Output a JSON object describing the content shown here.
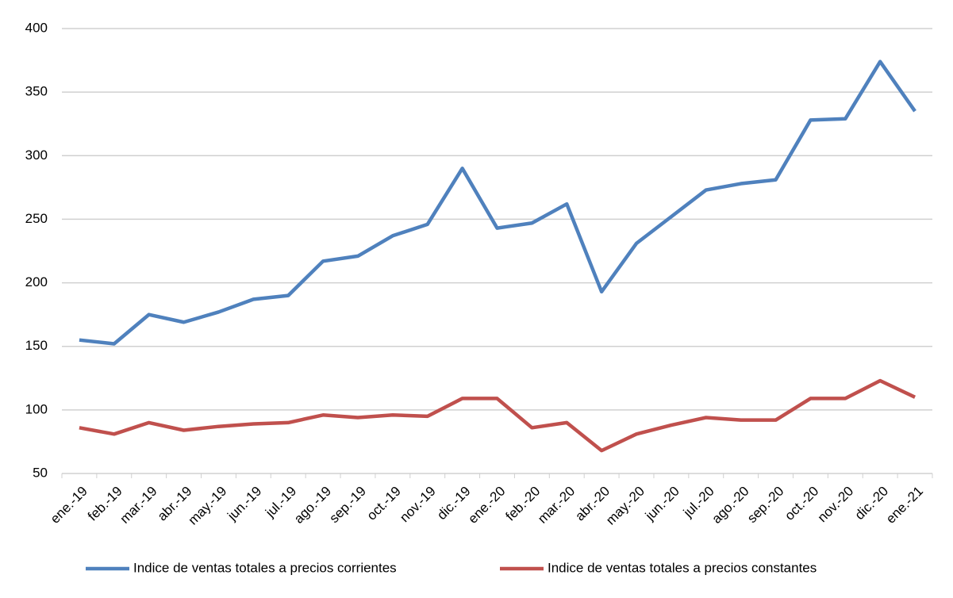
{
  "chart_data": {
    "type": "line",
    "categories": [
      "ene.-19",
      "feb.-19",
      "mar.-19",
      "abr.-19",
      "may.-19",
      "jun.-19",
      "jul.-19",
      "ago.-19",
      "sep.-19",
      "oct.-19",
      "nov.-19",
      "dic.-19",
      "ene.-20",
      "feb.-20",
      "mar.-20",
      "abr.-20",
      "may.-20",
      "jun.-20",
      "jul.-20",
      "ago.-20",
      "sep.-20",
      "oct.-20",
      "nov.-20",
      "dic.-20",
      "ene.-21"
    ],
    "series": [
      {
        "name": "Indice de ventas totales a precios corrientes",
        "color": "#4f81bd",
        "values": [
          155,
          152,
          175,
          169,
          177,
          187,
          190,
          217,
          221,
          237,
          246,
          290,
          243,
          247,
          262,
          193,
          231,
          252,
          273,
          278,
          281,
          328,
          329,
          374,
          335
        ]
      },
      {
        "name": "Indice de ventas totales a precios constantes",
        "color": "#c0504d",
        "values": [
          86,
          81,
          90,
          84,
          87,
          89,
          90,
          96,
          94,
          96,
          95,
          109,
          109,
          86,
          90,
          68,
          81,
          88,
          94,
          92,
          92,
          109,
          109,
          123,
          110
        ]
      }
    ],
    "ylim": [
      50,
      400
    ],
    "yticks": [
      50,
      100,
      150,
      200,
      250,
      300,
      350,
      400
    ],
    "grid": true,
    "legend": "bottom"
  }
}
